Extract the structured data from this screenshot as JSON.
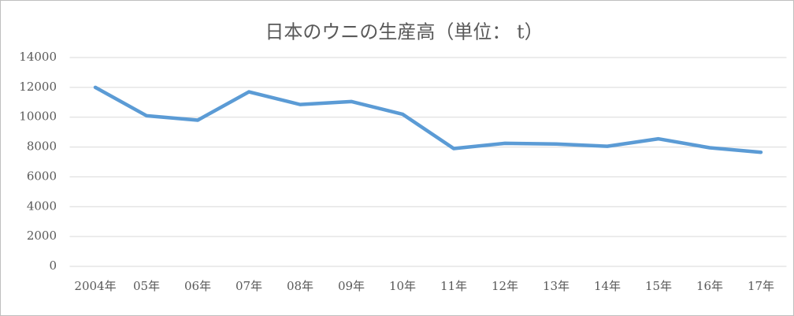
{
  "chart_data": {
    "type": "line",
    "title": "日本のウニの生産高（単位： t）",
    "categories": [
      "2004年",
      "05年",
      "06年",
      "07年",
      "08年",
      "09年",
      "10年",
      "11年",
      "12年",
      "13年",
      "14年",
      "15年",
      "16年",
      "17年"
    ],
    "series": [
      {
        "color": "#5b9bd5",
        "values": [
          12000,
          10100,
          9800,
          11700,
          10850,
          11050,
          10200,
          7900,
          8250,
          8200,
          8050,
          8550,
          7950,
          7650
        ]
      }
    ],
    "ylim": [
      0,
      14000
    ],
    "yticks": [
      0,
      2000,
      4000,
      6000,
      8000,
      10000,
      12000,
      14000
    ],
    "grid": true
  }
}
